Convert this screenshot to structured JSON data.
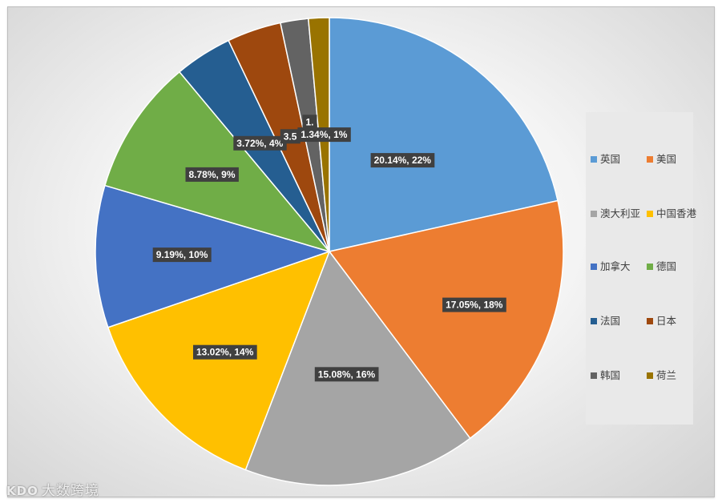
{
  "chart_data": {
    "type": "pie",
    "slices": [
      {
        "name": "英国",
        "value": 20.14,
        "label": "20.14%, 22%",
        "color": "#5B9BD5"
      },
      {
        "name": "美国",
        "value": 17.05,
        "label": "17.05%, 18%",
        "color": "#ED7D31"
      },
      {
        "name": "澳大利亚",
        "value": 15.08,
        "label": "15.08%, 16%",
        "color": "#A5A5A5"
      },
      {
        "name": "中国香港",
        "value": 13.02,
        "label": "13.02%, 14%",
        "color": "#FFC000"
      },
      {
        "name": "加拿大",
        "value": 9.19,
        "label": "9.19%, 10%",
        "color": "#4472C4"
      },
      {
        "name": "德国",
        "value": 8.78,
        "label": "8.78%, 9%",
        "color": "#70AD47"
      },
      {
        "name": "法国",
        "value": 3.72,
        "label": "3.72%, 4%",
        "color": "#255E91"
      },
      {
        "name": "日本",
        "value": 3.5,
        "label": "3.5",
        "color": "#9E480E"
      },
      {
        "name": "韩国",
        "value": 1.8,
        "label": "1.",
        "color": "#636363"
      },
      {
        "name": "荷兰",
        "value": 1.34,
        "label": "1.34%, 1%",
        "color": "#997300"
      }
    ],
    "legend_position": "right",
    "title": ""
  },
  "legend": {
    "items": [
      {
        "label": "英国",
        "color": "#5B9BD5"
      },
      {
        "label": "美国",
        "color": "#ED7D31"
      },
      {
        "label": "澳大利亚",
        "color": "#A5A5A5"
      },
      {
        "label": "中国香港",
        "color": "#FFC000"
      },
      {
        "label": "加拿大",
        "color": "#4472C4"
      },
      {
        "label": "德国",
        "color": "#70AD47"
      },
      {
        "label": "法国",
        "color": "#255E91"
      },
      {
        "label": "日本",
        "color": "#9E480E"
      },
      {
        "label": "韩国",
        "color": "#636363"
      },
      {
        "label": "荷兰",
        "color": "#997300"
      }
    ]
  },
  "watermark": {
    "logo": "KDO",
    "text": "大数跨境"
  }
}
